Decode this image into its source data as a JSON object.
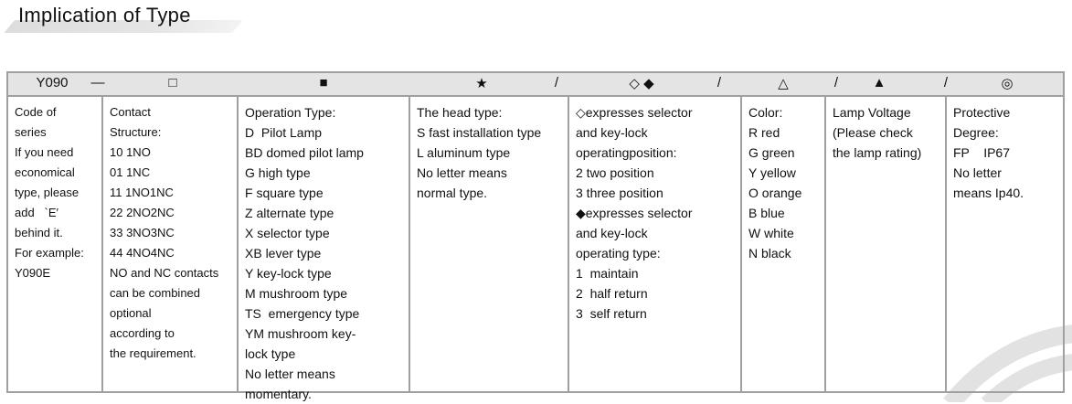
{
  "title": "Implication of Type",
  "header_symbols": [
    "Y090",
    "—",
    "□",
    "■",
    "★",
    "/",
    "◇ ◆",
    "/",
    "△",
    "/",
    "▲",
    "/",
    "◎"
  ],
  "columns": [
    {
      "lines": [
        "Code of",
        "series",
        "If you need",
        "economical",
        "type, please",
        "add   `E′",
        "behind it.",
        "For example:",
        "Y090E"
      ]
    },
    {
      "lines": [
        "Contact",
        "Structure:",
        "10 1NO",
        "01 1NC",
        "11 1NO1NC",
        "22 2NO2NC",
        "33 3NO3NC",
        "44 4NO4NC",
        "NO and NC contacts",
        "can be combined",
        "optional",
        "according to",
        "the requirement."
      ]
    },
    {
      "lines": [
        "Operation Type:",
        "D  Pilot Lamp",
        "BD domed pilot lamp",
        "G high type",
        "F square type",
        "Z alternate type",
        "X selector type",
        "XB lever type",
        "Y key-lock type",
        "M mushroom type",
        "TS  emergency type",
        "YM mushroom key-",
        "lock type",
        "No letter means",
        "momentary."
      ]
    },
    {
      "lines": [
        "The head type:",
        "S fast installation type",
        "L aluminum type",
        "No letter means",
        "normal type."
      ]
    },
    {
      "lines": [
        "◇expresses selector",
        "and key-lock",
        "operatingposition:",
        "2 two position",
        "3 three position",
        "◆expresses selector",
        "and key-lock",
        "operating type:",
        "1  maintain",
        "2  half return",
        "3  self return"
      ]
    },
    {
      "lines": [
        "Color:",
        "R red",
        "G green",
        "Y yellow",
        "O orange",
        "B blue",
        "W white",
        "N black"
      ]
    },
    {
      "lines": [
        "Lamp Voltage",
        "(Please check",
        "the lamp rating)"
      ]
    },
    {
      "lines": [
        "Protective",
        "Degree:",
        "FP    IP67",
        "No letter",
        "means Ip40."
      ]
    }
  ],
  "colors": {
    "border": "#a0a0a0",
    "header_bg": "#e4e4e4",
    "watermark": "#e2e2e2"
  }
}
